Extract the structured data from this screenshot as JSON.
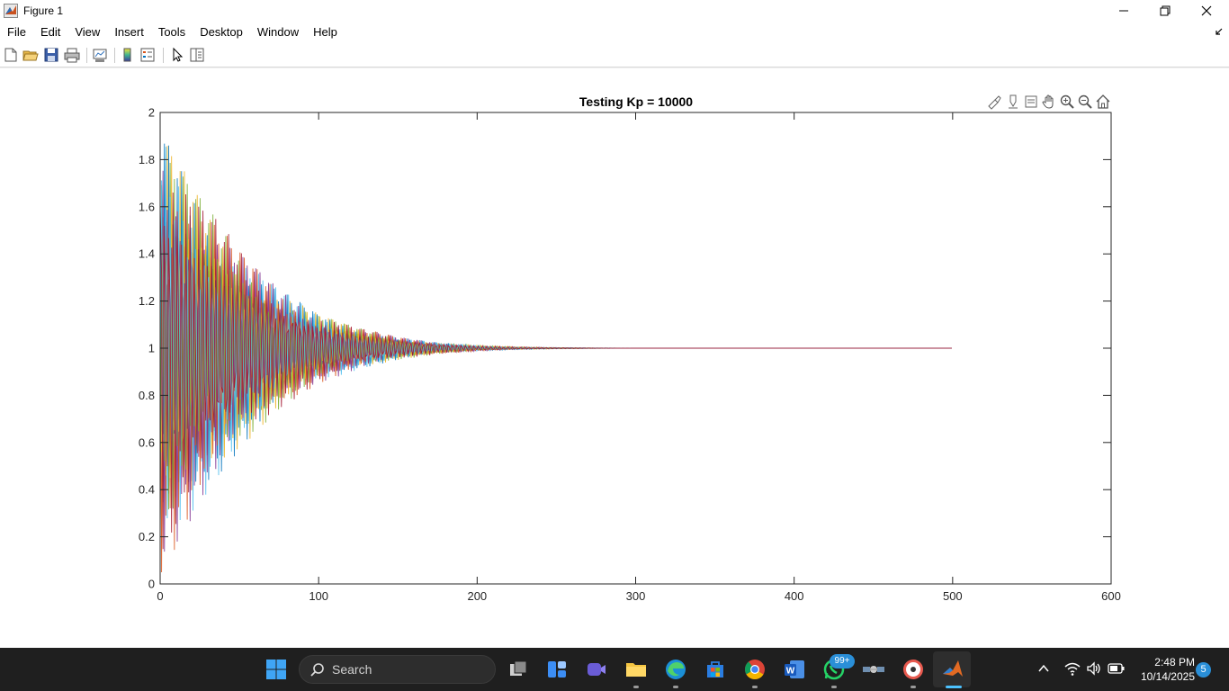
{
  "window": {
    "title": "Figure 1"
  },
  "menu": {
    "items": [
      "File",
      "Edit",
      "View",
      "Insert",
      "Tools",
      "Desktop",
      "Window",
      "Help"
    ]
  },
  "toolbar": {
    "icons": [
      "new-figure-icon",
      "open-file-icon",
      "save-icon",
      "print-icon",
      "link-plot-icon",
      "insert-colorbar-icon",
      "insert-legend-icon",
      "edit-plot-arrow-icon",
      "property-inspector-icon"
    ]
  },
  "axes_toolbar": {
    "icons": [
      "brush-icon",
      "data-tips-icon",
      "export-icon",
      "pan-hand-icon",
      "zoom-in-icon",
      "zoom-out-icon",
      "restore-view-icon"
    ]
  },
  "chart_data": {
    "type": "line",
    "title": "Testing Kp = 10000",
    "xlabel": "",
    "ylabel": "",
    "xlim": [
      0,
      600
    ],
    "ylim": [
      0,
      2
    ],
    "xticks": [
      0,
      100,
      200,
      300,
      400,
      500,
      600
    ],
    "yticks": [
      0,
      0.2,
      0.4,
      0.6,
      0.8,
      1,
      1.2,
      1.4,
      1.6,
      1.8,
      2
    ],
    "grid": false,
    "legend": "none",
    "description_of_series": "many overlapping multicolor series oscillating between 0 and 2 around y = 1",
    "envelope": {
      "x": [
        0,
        25,
        50,
        75,
        100,
        125,
        150,
        175,
        200,
        225,
        250,
        275,
        300,
        400,
        500
      ],
      "upper": [
        1.97,
        1.66,
        1.43,
        1.26,
        1.15,
        1.09,
        1.05,
        1.025,
        1.012,
        1.006,
        1.003,
        1.001,
        1.0,
        1.0,
        1.0
      ],
      "lower": [
        0.03,
        0.34,
        0.57,
        0.74,
        0.85,
        0.91,
        0.95,
        0.975,
        0.988,
        0.994,
        0.997,
        0.999,
        1.0,
        1.0,
        1.0
      ]
    },
    "x_end": 500,
    "final_value": 1.0,
    "series_colors": [
      "#0072bd",
      "#d95319",
      "#edb120",
      "#7e2f8e",
      "#77ac30",
      "#4dbeee",
      "#a2142f"
    ]
  },
  "taskbar": {
    "search_label": "Search",
    "whatsapp_badge": "99+",
    "time": "2:48 PM",
    "date": "10/14/2025",
    "notification_count": "5"
  }
}
